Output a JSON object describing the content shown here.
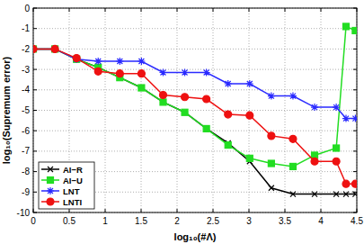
{
  "chart_data": {
    "type": "line",
    "x_label": "log₁₀(#Λ)",
    "y_label": "log₁₀(Supremum error)",
    "x": [
      0,
      0.301,
      0.602,
      0.903,
      1.204,
      1.505,
      1.806,
      2.107,
      2.408,
      2.709,
      3.01,
      3.311,
      3.612,
      3.913,
      4.214,
      4.35,
      4.48
    ],
    "series": [
      {
        "name": "AI−R",
        "color": "#000000",
        "marker": "x",
        "values": [
          -2,
          -2,
          -2.5,
          -2.9,
          -3.4,
          -3.9,
          -4.6,
          -5.1,
          -5.9,
          -6.6,
          -7.5,
          -8.8,
          -9.1,
          -9.1,
          -9.1,
          -9.1,
          -9.1
        ]
      },
      {
        "name": "AI−U",
        "color": "#22dd22",
        "marker": "square",
        "values": [
          -2,
          -2,
          -2.5,
          -2.9,
          -3.4,
          -3.9,
          -4.6,
          -5.1,
          -5.9,
          -6.7,
          -7.35,
          -7.6,
          -7.75,
          -7.2,
          -6.85,
          -0.9,
          -1.1
        ]
      },
      {
        "name": "LNT",
        "color": "#2a2aff",
        "marker": "star",
        "values": [
          -2,
          -2,
          -2.5,
          -2.6,
          -2.6,
          -2.6,
          -3.15,
          -3.15,
          -3.15,
          -3.7,
          -3.7,
          -4.3,
          -4.3,
          -4.85,
          -4.85,
          -5.4,
          -5.4
        ]
      },
      {
        "name": "LNTI",
        "color": "#ee1111",
        "marker": "circle",
        "values": [
          -2,
          -2,
          -2.45,
          -3.1,
          -3.2,
          -3.2,
          -4.25,
          -4.35,
          -4.45,
          -5.2,
          -5.25,
          -6.25,
          -6.4,
          -7.5,
          -7.5,
          -8.6,
          -8.6
        ]
      }
    ],
    "xlim": [
      0,
      4.5
    ],
    "ylim": [
      -10,
      0
    ],
    "xticks": [
      0,
      0.5,
      1,
      1.5,
      2,
      2.5,
      3,
      3.5,
      4,
      4.5
    ],
    "yticks": [
      -10,
      -9,
      -8,
      -7,
      -6,
      -5,
      -4,
      -3,
      -2,
      -1,
      0
    ],
    "grid": true,
    "legend": "lower left"
  }
}
